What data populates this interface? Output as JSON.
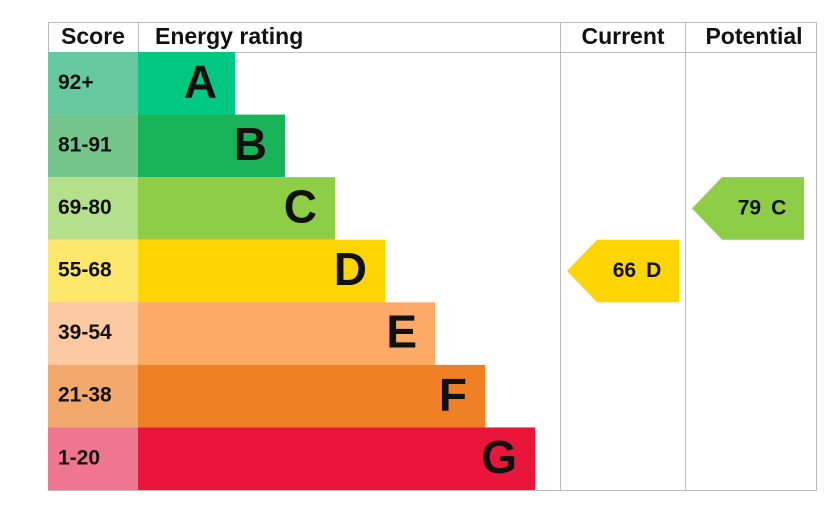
{
  "headers": {
    "score": "Score",
    "rating": "Energy rating",
    "current": "Current",
    "potential": "Potential"
  },
  "bands": [
    {
      "score": "92+",
      "letter": "A",
      "color": "#00c781",
      "tint": "#66c99f"
    },
    {
      "score": "81-91",
      "letter": "B",
      "color": "#19b459",
      "tint": "#74c58b"
    },
    {
      "score": "69-80",
      "letter": "C",
      "color": "#8dce46",
      "tint": "#b5e08b"
    },
    {
      "score": "55-68",
      "letter": "D",
      "color": "#ffd500",
      "tint": "#fde86b"
    },
    {
      "score": "39-54",
      "letter": "E",
      "color": "#fcaa65",
      "tint": "#fdc9a0"
    },
    {
      "score": "21-38",
      "letter": "F",
      "color": "#ef8023",
      "tint": "#f2a86b"
    },
    {
      "score": "1-20",
      "letter": "G",
      "color": "#e9153b",
      "tint": "#f07690"
    }
  ],
  "current": {
    "value": 66,
    "letter": "D"
  },
  "potential": {
    "value": 79,
    "letter": "C"
  }
}
